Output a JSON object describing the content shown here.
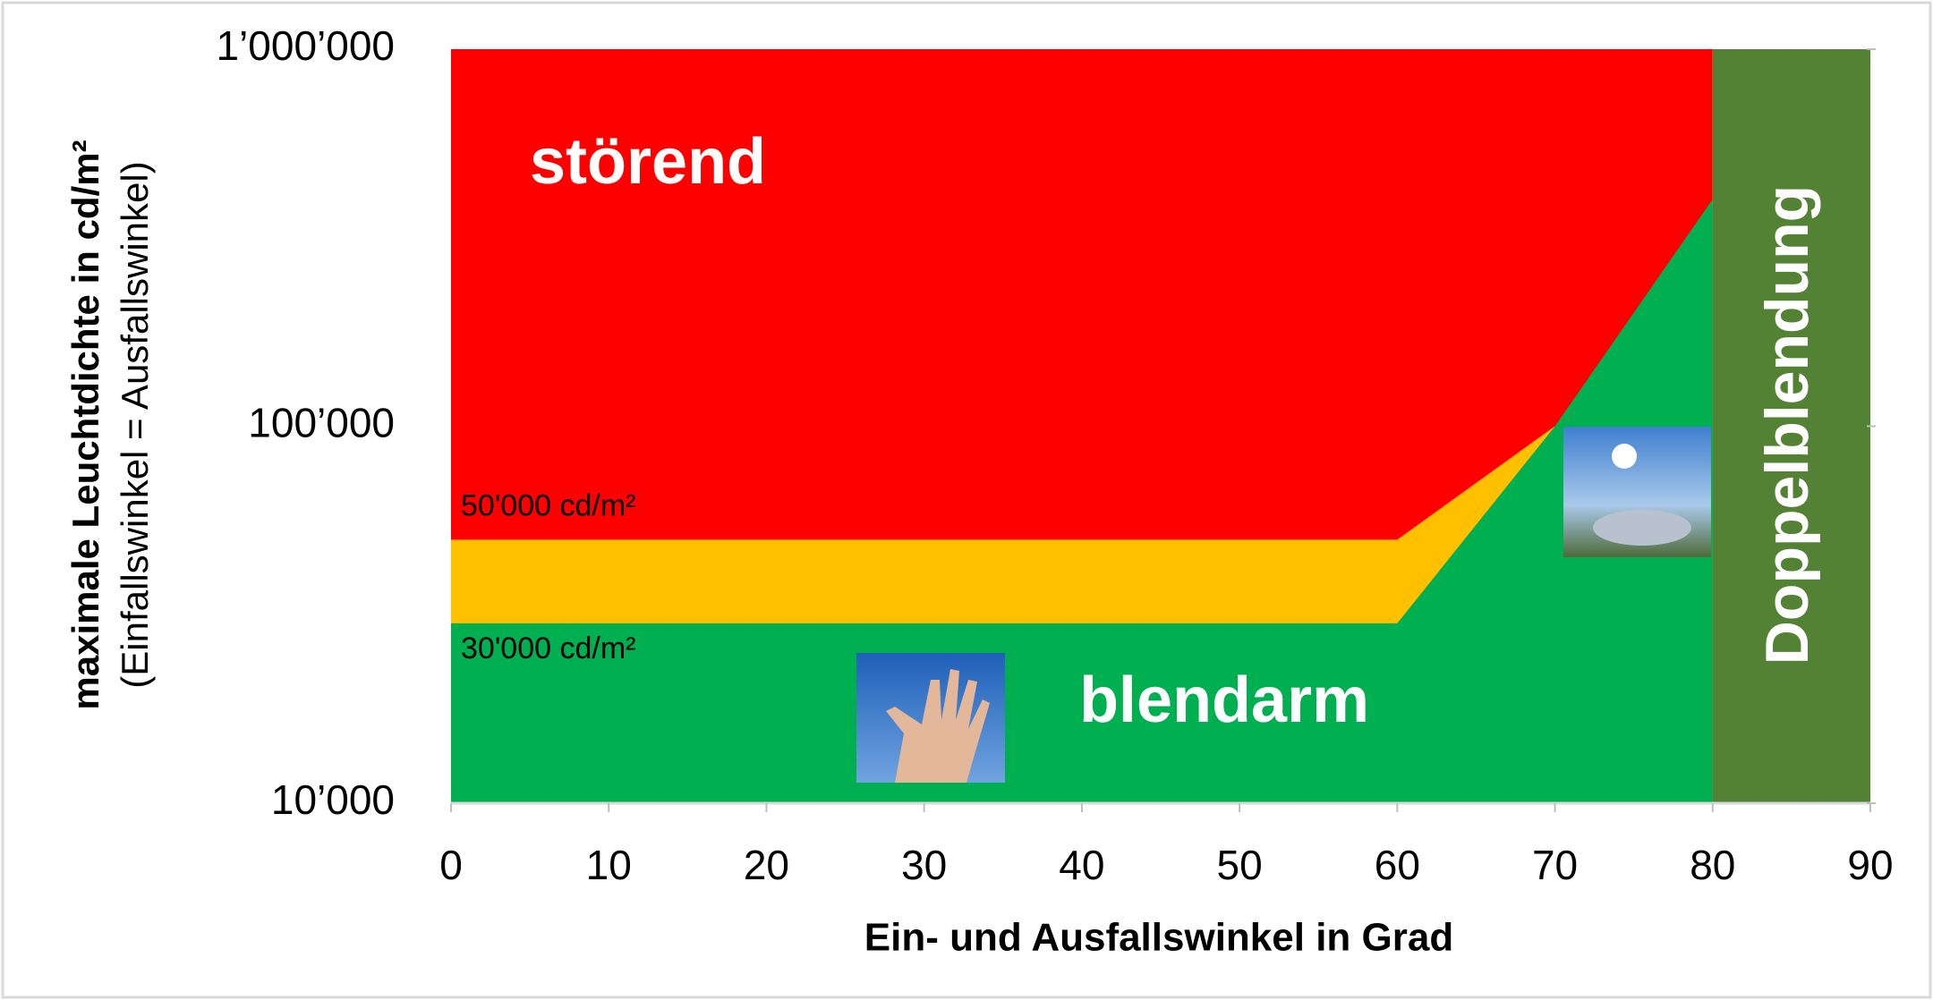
{
  "chart_data": {
    "type": "area",
    "xlabel": "Ein- und Ausfallswinkel in Grad",
    "ylabel": "maximale Leuchtdichte in cd/m²",
    "ylabel2": "(Einfallswinkel = Ausfallswinkel)",
    "xlim": [
      0,
      90
    ],
    "xticks": [
      0,
      10,
      20,
      30,
      40,
      50,
      60,
      70,
      80,
      90
    ],
    "ylim": [
      10000,
      1000000
    ],
    "yticks": [
      {
        "value": 10000,
        "label": "10’000"
      },
      {
        "value": 100000,
        "label": "100’000"
      },
      {
        "value": 1000000,
        "label": "1’000’000"
      }
    ],
    "log_y": true,
    "series": [
      {
        "name": "störend",
        "color": "#ff0000",
        "x": [
          0,
          80
        ],
        "values": [
          1000000,
          1000000
        ]
      },
      {
        "color": "#ffc000",
        "x": [
          0,
          60,
          70
        ],
        "values": [
          50000,
          50000,
          100000
        ]
      },
      {
        "name": "blendarm",
        "color": "#00b050",
        "x": [
          0,
          60,
          70,
          80
        ],
        "values": [
          30000,
          30000,
          100000,
          400000
        ]
      },
      {
        "name": "Doppelblendung",
        "color": "#548235",
        "x": [
          80,
          90
        ],
        "values": [
          1000000,
          1000000
        ]
      }
    ],
    "annotations": [
      {
        "text": "50'000 cd/m²",
        "value": 50000
      },
      {
        "text": "30'000 cd/m²",
        "value": 30000
      }
    ]
  }
}
